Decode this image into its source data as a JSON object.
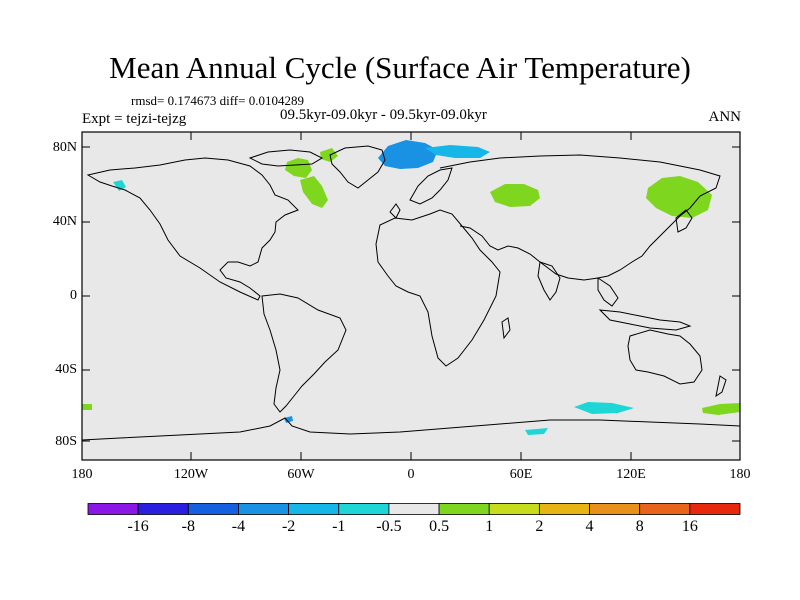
{
  "title": "Mean Annual Cycle (Surface Air Temperature)",
  "stats": "rmsd= 0.174673 diff= 0.0104289",
  "subtitle": "09.5kyr-09.0kyr - 09.5kyr-09.0kyr",
  "expt": "Expt = tejzi-tejzg",
  "season": "ANN",
  "y_axis_labels": [
    "80N",
    "40N",
    "0",
    "40S",
    "80S"
  ],
  "x_axis_labels": [
    "180",
    "120W",
    "60W",
    "0",
    "60E",
    "120E",
    "180"
  ],
  "colorbar": {
    "labels": [
      "-16",
      "-8",
      "-4",
      "-2",
      "-1",
      "-0.5",
      "0.5",
      "1",
      "2",
      "4",
      "8",
      "16"
    ],
    "colors": [
      "#8a17e6",
      "#2a1ee0",
      "#1560e0",
      "#1a92e3",
      "#16b6e8",
      "#1ed6d6",
      "#e8e8e8",
      "#7fd61e",
      "#c8dc1e",
      "#e6b414",
      "#e8901a",
      "#e8641a",
      "#e8280c"
    ]
  },
  "field_colors": {
    "background": "#e8e8e8",
    "positive": "#7fd61e",
    "blue": "#1a92e3",
    "light_blue": "#16b6e8",
    "cyan": "#1ed6d6"
  }
}
